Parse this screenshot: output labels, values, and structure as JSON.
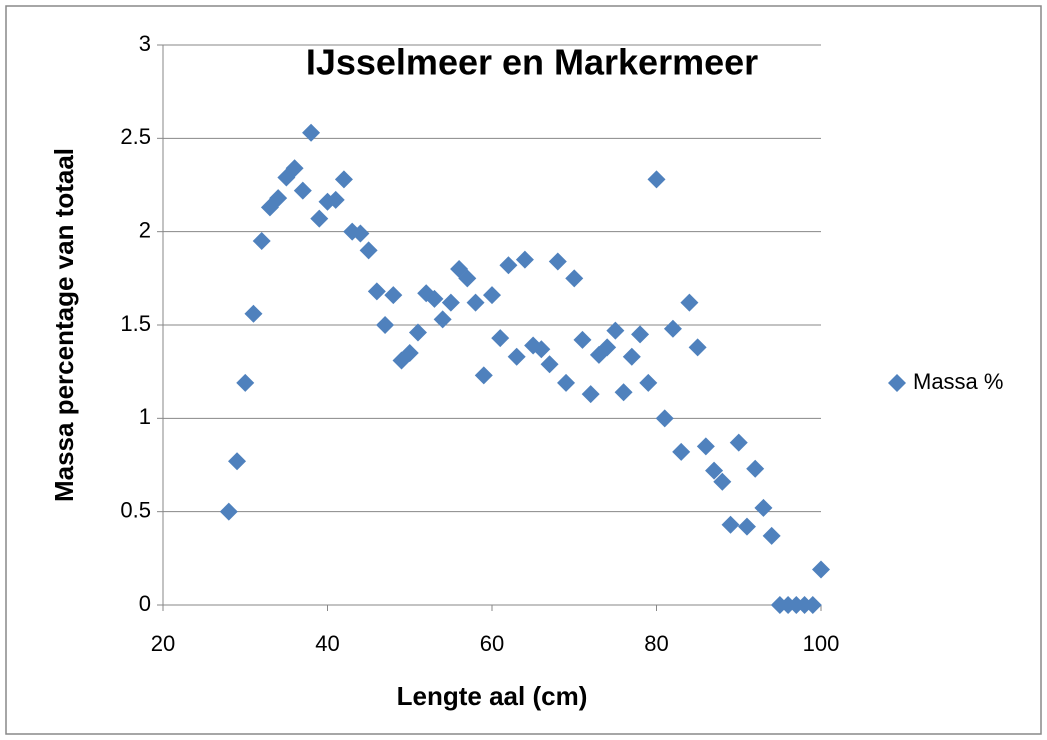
{
  "chart_data": {
    "type": "scatter",
    "title": "IJsselmeer en Markermeer",
    "x_label": "Lengte aal (cm)",
    "y_label": "Massa percentage van totaal",
    "xlim": [
      20,
      100
    ],
    "xticks": [
      20,
      40,
      60,
      80,
      100
    ],
    "ylim": [
      0,
      3
    ],
    "yticks": [
      0,
      0.5,
      1,
      1.5,
      2,
      2.5,
      3
    ],
    "grid": true,
    "legend": "right",
    "series": [
      {
        "name": "Massa %",
        "color": "#4f81bd",
        "x": [
          28,
          29,
          30,
          31,
          32,
          33,
          34,
          35,
          36,
          37,
          38,
          39,
          40,
          41,
          42,
          43,
          44,
          45,
          46,
          47,
          48,
          49,
          50,
          51,
          52,
          53,
          54,
          55,
          56,
          57,
          58,
          59,
          60,
          61,
          62,
          63,
          64,
          65,
          66,
          67,
          68,
          69,
          70,
          71,
          72,
          73,
          74,
          75,
          76,
          77,
          78,
          79,
          80,
          81,
          82,
          83,
          84,
          85,
          86,
          87,
          88,
          89,
          90,
          91,
          92,
          93,
          94,
          95,
          96,
          97,
          98,
          99,
          100
        ],
        "values": [
          0.5,
          0.77,
          1.19,
          1.56,
          1.95,
          2.13,
          2.18,
          2.29,
          2.34,
          2.22,
          2.53,
          2.07,
          2.16,
          2.17,
          2.28,
          2.0,
          1.99,
          1.9,
          1.68,
          1.5,
          1.66,
          1.31,
          1.35,
          1.46,
          1.67,
          1.64,
          1.53,
          1.62,
          1.8,
          1.75,
          1.62,
          1.23,
          1.66,
          1.43,
          1.82,
          1.33,
          1.85,
          1.39,
          1.37,
          1.29,
          1.84,
          1.19,
          1.75,
          1.42,
          1.13,
          1.34,
          1.38,
          1.47,
          1.14,
          1.33,
          1.45,
          1.19,
          2.28,
          1.0,
          1.48,
          0.82,
          1.62,
          1.38,
          0.85,
          0.72,
          0.66,
          0.43,
          0.87,
          0.42,
          0.73,
          0.52,
          0.37,
          0,
          0,
          0,
          0,
          0,
          0.19
        ]
      }
    ]
  }
}
